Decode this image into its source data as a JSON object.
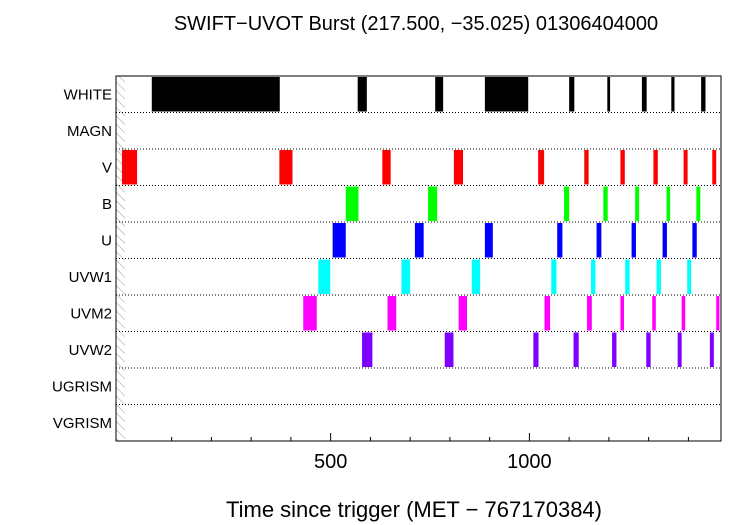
{
  "chart_data": {
    "type": "timeline",
    "title": "SWIFT−UVOT Burst (217.500, −35.025) 01306404000",
    "xlabel": "Time since trigger (MET − 767170384)",
    "ylabel": "",
    "xlim": [
      -40,
      1482
    ],
    "x_ticks": [
      500,
      1000
    ],
    "x_tick_labels": [
      "500",
      "1000"
    ],
    "x_minor_ticks": [
      100,
      200,
      300,
      400,
      600,
      700,
      800,
      900,
      1100,
      1200,
      1300,
      1400
    ],
    "grid": "dotted horizontal row separators",
    "rows": [
      {
        "name": "WHITE",
        "color": "#000000",
        "intervals": [
          [
            50,
            372
          ],
          [
            568,
            591
          ],
          [
            763,
            783
          ],
          [
            888,
            997
          ],
          [
            1100,
            1113
          ],
          [
            1196,
            1203
          ],
          [
            1283,
            1295
          ],
          [
            1357,
            1365
          ],
          [
            1432,
            1443
          ]
        ]
      },
      {
        "name": "MAGN",
        "color": "#000000",
        "intervals": []
      },
      {
        "name": "V",
        "color": "#ff0000",
        "intervals": [
          [
            -25,
            13
          ],
          [
            371,
            404
          ],
          [
            630,
            651
          ],
          [
            810,
            833
          ],
          [
            1022,
            1037
          ],
          [
            1138,
            1149
          ],
          [
            1229,
            1240
          ],
          [
            1312,
            1323
          ],
          [
            1388,
            1398
          ],
          [
            1460,
            1470
          ]
        ]
      },
      {
        "name": "B",
        "color": "#00ff00",
        "intervals": [
          [
            538,
            570
          ],
          [
            745,
            768
          ],
          [
            1087,
            1100
          ],
          [
            1186,
            1197
          ],
          [
            1266,
            1276
          ],
          [
            1345,
            1354
          ],
          [
            1420,
            1430
          ]
        ]
      },
      {
        "name": "U",
        "color": "#0000ff",
        "intervals": [
          [
            505,
            538
          ],
          [
            712,
            734
          ],
          [
            888,
            908
          ],
          [
            1070,
            1083
          ],
          [
            1169,
            1181
          ],
          [
            1257,
            1268
          ],
          [
            1335,
            1346
          ],
          [
            1410,
            1421
          ]
        ]
      },
      {
        "name": "UVW1",
        "color": "#00ffff",
        "intervals": [
          [
            469,
            499
          ],
          [
            678,
            700
          ],
          [
            855,
            876
          ],
          [
            1055,
            1068
          ],
          [
            1155,
            1166
          ],
          [
            1241,
            1252
          ],
          [
            1320,
            1331
          ],
          [
            1397,
            1407
          ]
        ]
      },
      {
        "name": "UVM2",
        "color": "#ff00ff",
        "intervals": [
          [
            431,
            465
          ],
          [
            643,
            665
          ],
          [
            822,
            843
          ],
          [
            1038,
            1052
          ],
          [
            1145,
            1157
          ],
          [
            1229,
            1238
          ],
          [
            1309,
            1318
          ],
          [
            1383,
            1392
          ],
          [
            1470,
            1478
          ]
        ]
      },
      {
        "name": "UVW2",
        "color": "#8000ff",
        "intervals": [
          [
            579,
            605
          ],
          [
            787,
            809
          ],
          [
            1010,
            1023
          ],
          [
            1111,
            1124
          ],
          [
            1208,
            1219
          ],
          [
            1294,
            1305
          ],
          [
            1373,
            1383
          ],
          [
            1454,
            1464
          ]
        ]
      },
      {
        "name": "UGRISM",
        "color": "#000000",
        "intervals": []
      },
      {
        "name": "VGRISM",
        "color": "#000000",
        "intervals": []
      }
    ]
  }
}
